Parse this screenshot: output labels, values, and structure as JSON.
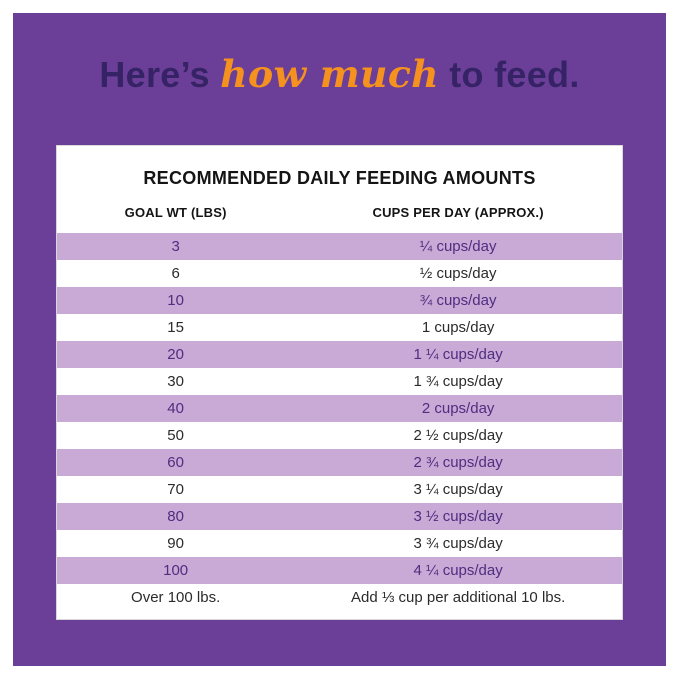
{
  "heading": {
    "part1": "Here’s ",
    "highlight": "how much",
    "part2": " to feed."
  },
  "chart_data": {
    "type": "table",
    "title": "RECOMMENDED DAILY FEEDING AMOUNTS",
    "columns": [
      "GOAL WT (LBS)",
      "CUPS PER DAY (APPROX.)"
    ],
    "rows": [
      [
        "3",
        "¼ cups/day"
      ],
      [
        "6",
        "½ cups/day"
      ],
      [
        "10",
        "¾ cups/day"
      ],
      [
        "15",
        "1 cups/day"
      ],
      [
        "20",
        "1 ¼ cups/day"
      ],
      [
        "30",
        "1 ¾ cups/day"
      ],
      [
        "40",
        "2 cups/day"
      ],
      [
        "50",
        "2 ½ cups/day"
      ],
      [
        "60",
        "2 ¾ cups/day"
      ],
      [
        "70",
        "3 ¼ cups/day"
      ],
      [
        "80",
        "3 ½ cups/day"
      ],
      [
        "90",
        "3 ¾ cups/day"
      ],
      [
        "100",
        "4 ¼ cups/day"
      ],
      [
        "Over 100 lbs.",
        "Add ⅓ cup per additional 10 lbs."
      ]
    ],
    "layout": {
      "shaded_rows": "alternating starting with first row",
      "legend": "none",
      "grid": "off"
    }
  },
  "colors": {
    "background_purple": "#6b3e98",
    "row_shade": "#c9a9d6",
    "heading_dark": "#362365",
    "accent_orange": "#f5911e",
    "shaded_row_text": "#4f2d7f"
  }
}
